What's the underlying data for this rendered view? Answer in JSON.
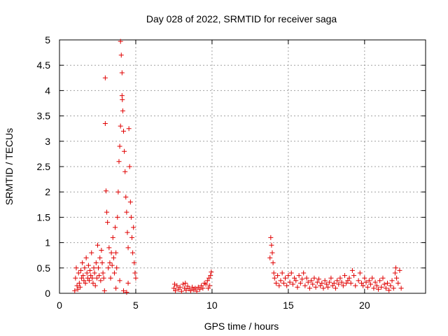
{
  "chart_data": {
    "type": "scatter",
    "title": "Day 028 of 2022, SRMTID for receiver saga",
    "xlabel": "GPS time / hours",
    "ylabel": "SRMTID / TECUs",
    "xlim": [
      0,
      24
    ],
    "ylim": [
      0,
      5
    ],
    "x_ticks": [
      0,
      5,
      10,
      15,
      20
    ],
    "x_tick_labels": [
      "0",
      "5",
      "10",
      "15",
      "20"
    ],
    "y_ticks": [
      0,
      0.5,
      1,
      1.5,
      2,
      2.5,
      3,
      3.5,
      4,
      4.5,
      5
    ],
    "y_tick_labels": [
      "0",
      "0.5",
      "1",
      "1.5",
      "2",
      "2.5",
      "3",
      "3.5",
      "4",
      "4.5",
      "5"
    ],
    "grid": true,
    "legend": "none",
    "marker": "plus",
    "color": "#e00000",
    "points": [
      [
        1.0,
        0.05
      ],
      [
        1.05,
        0.3
      ],
      [
        1.1,
        0.5
      ],
      [
        1.15,
        0.15
      ],
      [
        1.2,
        0.08
      ],
      [
        1.25,
        0.4
      ],
      [
        1.3,
        0.2
      ],
      [
        1.35,
        0.12
      ],
      [
        1.4,
        0.45
      ],
      [
        1.45,
        0.3
      ],
      [
        1.5,
        0.6
      ],
      [
        1.55,
        0.35
      ],
      [
        1.6,
        0.25
      ],
      [
        1.65,
        0.5
      ],
      [
        1.7,
        0.2
      ],
      [
        1.75,
        0.7
      ],
      [
        1.8,
        0.4
      ],
      [
        1.85,
        0.3
      ],
      [
        1.9,
        0.55
      ],
      [
        1.95,
        0.25
      ],
      [
        2.0,
        0.45
      ],
      [
        2.05,
        0.35
      ],
      [
        2.1,
        0.8
      ],
      [
        2.15,
        0.3
      ],
      [
        2.2,
        0.2
      ],
      [
        2.25,
        0.5
      ],
      [
        2.3,
        0.4
      ],
      [
        2.35,
        0.15
      ],
      [
        2.4,
        0.6
      ],
      [
        2.45,
        0.3
      ],
      [
        2.5,
        0.95
      ],
      [
        2.55,
        0.5
      ],
      [
        2.6,
        0.35
      ],
      [
        2.65,
        0.7
      ],
      [
        2.7,
        0.25
      ],
      [
        2.75,
        0.85
      ],
      [
        2.8,
        0.6
      ],
      [
        2.85,
        0.4
      ],
      [
        2.9,
        0.3
      ],
      [
        2.95,
        0.05
      ],
      [
        3.0,
        4.25
      ],
      [
        3.0,
        3.35
      ],
      [
        3.05,
        2.02
      ],
      [
        3.1,
        1.6
      ],
      [
        3.15,
        1.4
      ],
      [
        3.2,
        0.5
      ],
      [
        3.25,
        0.9
      ],
      [
        3.3,
        0.6
      ],
      [
        3.35,
        0.3
      ],
      [
        3.4,
        0.8
      ],
      [
        3.45,
        0.55
      ],
      [
        3.5,
        1.1
      ],
      [
        3.55,
        0.7
      ],
      [
        3.6,
        0.4
      ],
      [
        3.65,
        1.3
      ],
      [
        3.7,
        0.8
      ],
      [
        3.75,
        0.5
      ],
      [
        3.8,
        1.5
      ],
      [
        3.85,
        2.0
      ],
      [
        3.9,
        2.6
      ],
      [
        3.95,
        2.9
      ],
      [
        4.0,
        3.3
      ],
      [
        4.0,
        4.97
      ],
      [
        4.05,
        4.7
      ],
      [
        4.1,
        4.35
      ],
      [
        4.1,
        3.9
      ],
      [
        4.12,
        3.82
      ],
      [
        4.15,
        3.6
      ],
      [
        4.2,
        3.2
      ],
      [
        4.25,
        2.8
      ],
      [
        4.3,
        2.4
      ],
      [
        4.35,
        1.9
      ],
      [
        4.4,
        1.6
      ],
      [
        4.45,
        1.2
      ],
      [
        4.5,
        0.9
      ],
      [
        4.55,
        3.25
      ],
      [
        4.6,
        2.5
      ],
      [
        4.65,
        1.8
      ],
      [
        4.7,
        1.5
      ],
      [
        4.75,
        1.1
      ],
      [
        4.8,
        0.8
      ],
      [
        4.85,
        1.3
      ],
      [
        4.9,
        0.6
      ],
      [
        4.95,
        0.4
      ],
      [
        5.0,
        0.3
      ],
      [
        4.2,
        0.05
      ],
      [
        4.4,
        0.02
      ],
      [
        3.7,
        0.1
      ],
      [
        3.95,
        0.25
      ],
      [
        4.5,
        0.2
      ],
      [
        7.5,
        0.1
      ],
      [
        7.6,
        0.05
      ],
      [
        7.7,
        0.15
      ],
      [
        7.8,
        0.08
      ],
      [
        7.9,
        0.12
      ],
      [
        8.0,
        0.04
      ],
      [
        8.1,
        0.18
      ],
      [
        8.2,
        0.1
      ],
      [
        8.3,
        0.06
      ],
      [
        8.4,
        0.14
      ],
      [
        8.5,
        0.09
      ],
      [
        8.6,
        0.05
      ],
      [
        8.7,
        0.12
      ],
      [
        8.8,
        0.07
      ],
      [
        8.9,
        0.1
      ],
      [
        9.0,
        0.04
      ],
      [
        9.1,
        0.12
      ],
      [
        9.2,
        0.08
      ],
      [
        9.3,
        0.15
      ],
      [
        9.4,
        0.1
      ],
      [
        9.5,
        0.2
      ],
      [
        9.6,
        0.18
      ],
      [
        9.7,
        0.25
      ],
      [
        9.8,
        0.3
      ],
      [
        9.9,
        0.35
      ],
      [
        9.95,
        0.42
      ],
      [
        9.85,
        0.15
      ],
      [
        9.75,
        0.1
      ],
      [
        7.55,
        0.18
      ],
      [
        8.25,
        0.2
      ],
      [
        13.8,
        0.7
      ],
      [
        13.85,
        1.1
      ],
      [
        13.9,
        0.95
      ],
      [
        13.95,
        0.8
      ],
      [
        14.0,
        0.6
      ],
      [
        14.05,
        0.4
      ],
      [
        14.1,
        0.3
      ],
      [
        14.2,
        0.2
      ],
      [
        14.3,
        0.35
      ],
      [
        14.4,
        0.15
      ],
      [
        14.5,
        0.25
      ],
      [
        14.6,
        0.4
      ],
      [
        14.7,
        0.2
      ],
      [
        14.8,
        0.3
      ],
      [
        14.9,
        0.15
      ],
      [
        15.0,
        0.35
      ],
      [
        15.1,
        0.22
      ],
      [
        15.2,
        0.4
      ],
      [
        15.3,
        0.18
      ],
      [
        15.4,
        0.3
      ],
      [
        15.5,
        0.25
      ],
      [
        15.6,
        0.12
      ],
      [
        15.7,
        0.35
      ],
      [
        15.8,
        0.2
      ],
      [
        15.9,
        0.28
      ],
      [
        16.0,
        0.4
      ],
      [
        16.1,
        0.15
      ],
      [
        16.2,
        0.3
      ],
      [
        16.3,
        0.22
      ],
      [
        16.4,
        0.1
      ],
      [
        16.5,
        0.25
      ],
      [
        16.6,
        0.18
      ],
      [
        16.7,
        0.3
      ],
      [
        16.8,
        0.12
      ],
      [
        16.9,
        0.22
      ],
      [
        17.0,
        0.28
      ],
      [
        17.1,
        0.15
      ],
      [
        17.2,
        0.2
      ],
      [
        17.3,
        0.1
      ],
      [
        17.4,
        0.25
      ],
      [
        17.5,
        0.18
      ],
      [
        17.6,
        0.12
      ],
      [
        17.7,
        0.22
      ],
      [
        17.8,
        0.3
      ],
      [
        17.9,
        0.15
      ],
      [
        18.0,
        0.2
      ],
      [
        18.1,
        0.1
      ],
      [
        18.2,
        0.25
      ],
      [
        18.3,
        0.18
      ],
      [
        18.4,
        0.3
      ],
      [
        18.5,
        0.22
      ],
      [
        18.6,
        0.15
      ],
      [
        18.7,
        0.35
      ],
      [
        18.8,
        0.2
      ],
      [
        18.9,
        0.25
      ],
      [
        19.0,
        0.3
      ],
      [
        19.1,
        0.2
      ],
      [
        19.2,
        0.45
      ],
      [
        19.3,
        0.35
      ],
      [
        19.4,
        0.15
      ],
      [
        19.6,
        0.25
      ],
      [
        19.7,
        0.4
      ],
      [
        19.8,
        0.2
      ],
      [
        19.9,
        0.15
      ],
      [
        20.0,
        0.3
      ],
      [
        20.1,
        0.22
      ],
      [
        20.2,
        0.12
      ],
      [
        20.3,
        0.25
      ],
      [
        20.4,
        0.18
      ],
      [
        20.5,
        0.3
      ],
      [
        20.6,
        0.1
      ],
      [
        20.7,
        0.22
      ],
      [
        20.8,
        0.15
      ],
      [
        20.9,
        0.08
      ],
      [
        21.0,
        0.25
      ],
      [
        21.1,
        0.12
      ],
      [
        21.2,
        0.3
      ],
      [
        21.3,
        0.18
      ],
      [
        21.4,
        0.1
      ],
      [
        21.5,
        0.2
      ],
      [
        21.6,
        0.06
      ],
      [
        21.7,
        0.15
      ],
      [
        21.8,
        0.25
      ],
      [
        21.9,
        0.1
      ],
      [
        22.0,
        0.4
      ],
      [
        22.05,
        0.5
      ],
      [
        22.1,
        0.3
      ],
      [
        22.2,
        0.2
      ],
      [
        22.3,
        0.45
      ],
      [
        22.4,
        0.1
      ]
    ]
  }
}
